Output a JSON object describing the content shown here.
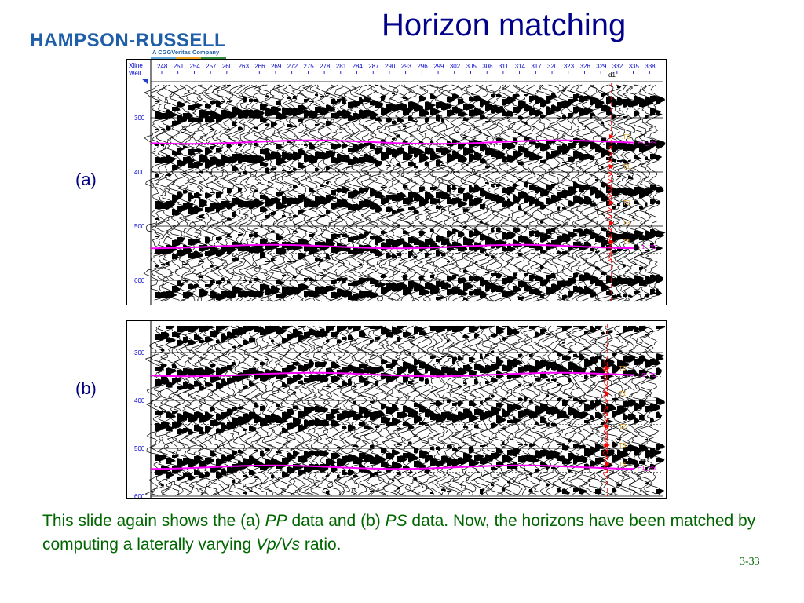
{
  "logo": {
    "name": "HAMPSON-RUSSELL",
    "tagline": "A CGGVeritas Company",
    "colors": [
      "#1f5ea8",
      "#5fa8d8",
      "#f0a020",
      "#2f8f3f"
    ]
  },
  "slide": {
    "title": "Horizon matching",
    "slide_number": "3-33"
  },
  "panels": {
    "a": {
      "label": "(a)",
      "header_labels": {
        "xline": "Xline",
        "well": "Well",
        "well_marker": "d1"
      },
      "xline_ticks": [
        "248",
        "251",
        "254",
        "257",
        "260",
        "263",
        "266",
        "269",
        "272",
        "275",
        "278",
        "281",
        "284",
        "287",
        "290",
        "293",
        "296",
        "299",
        "302",
        "305",
        "308",
        "311",
        "314",
        "317",
        "320",
        "323",
        "326",
        "329",
        "332",
        "335",
        "338"
      ],
      "time_ticks": [
        "300",
        "400",
        "500",
        "600"
      ],
      "horizon_labels": [
        "H0_PS",
        "H1_PS"
      ],
      "well_tops": [
        "T0",
        "T1",
        "T2",
        "T3",
        "T4"
      ]
    },
    "b": {
      "label": "(b)",
      "time_ticks": [
        "300",
        "400",
        "500",
        "600"
      ],
      "horizon_labels": [
        "H0_PS",
        "H1_PS"
      ],
      "well_tops": [
        "T0",
        "T1",
        "T2",
        "T3",
        "T4"
      ]
    }
  },
  "caption": {
    "part1": "This slide again shows the (a) ",
    "pp": "PP",
    "part2": " data and (b) ",
    "ps": "PS",
    "part3": " data.  Now, the horizons have been matched by computing a laterally varying ",
    "vpvs": "Vp/Vs",
    "part4": " ratio."
  },
  "colors": {
    "title": "#00008b",
    "panel_label": "#000080",
    "caption": "#006600",
    "horizon": "#ff00ff",
    "well": "#ff0000",
    "tick_text": "#0000cc",
    "well_top_text": "#e0a020"
  }
}
